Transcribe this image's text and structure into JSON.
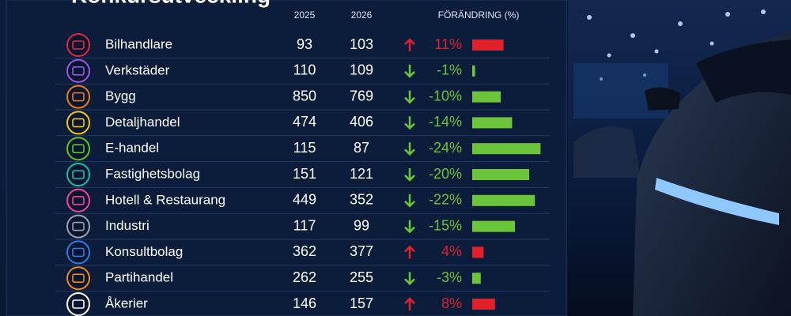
{
  "header": {
    "title": "Konkursutveckling"
  },
  "table": {
    "columns": [
      "2025",
      "2026",
      "FÖRÄNDRING (%)"
    ],
    "rows": [
      {
        "name": "Bilhandlare",
        "y2025": 93,
        "y2026": 103,
        "change": 11,
        "change_label": "11%"
      },
      {
        "name": "Verkstäder",
        "y2025": 110,
        "y2026": 109,
        "change": -1,
        "change_label": "-1%"
      },
      {
        "name": "Bygg",
        "y2025": 850,
        "y2026": 769,
        "change": -10,
        "change_label": "-10%"
      },
      {
        "name": "Detaljhandel",
        "y2025": 474,
        "y2026": 406,
        "change": -14,
        "change_label": "-14%"
      },
      {
        "name": "E-handel",
        "y2025": 115,
        "y2026": 87,
        "change": -24,
        "change_label": "-24%"
      },
      {
        "name": "Fastighetsbolag",
        "y2025": 151,
        "y2026": 121,
        "change": -20,
        "change_label": "-20%"
      },
      {
        "name": "Hotell & Restaurang",
        "y2025": 449,
        "y2026": 352,
        "change": -22,
        "change_label": "-22%"
      },
      {
        "name": "Industri",
        "y2025": 117,
        "y2026": 99,
        "change": -15,
        "change_label": "-15%"
      },
      {
        "name": "Konsultbolag",
        "y2025": 362,
        "y2026": 377,
        "change": 4,
        "change_label": "4%"
      },
      {
        "name": "Partihandel",
        "y2025": 262,
        "y2026": 255,
        "change": -3,
        "change_label": "-3%"
      },
      {
        "name": "Åkerier",
        "y2025": 146,
        "y2026": 157,
        "change": 8,
        "change_label": "8%"
      }
    ]
  }
}
